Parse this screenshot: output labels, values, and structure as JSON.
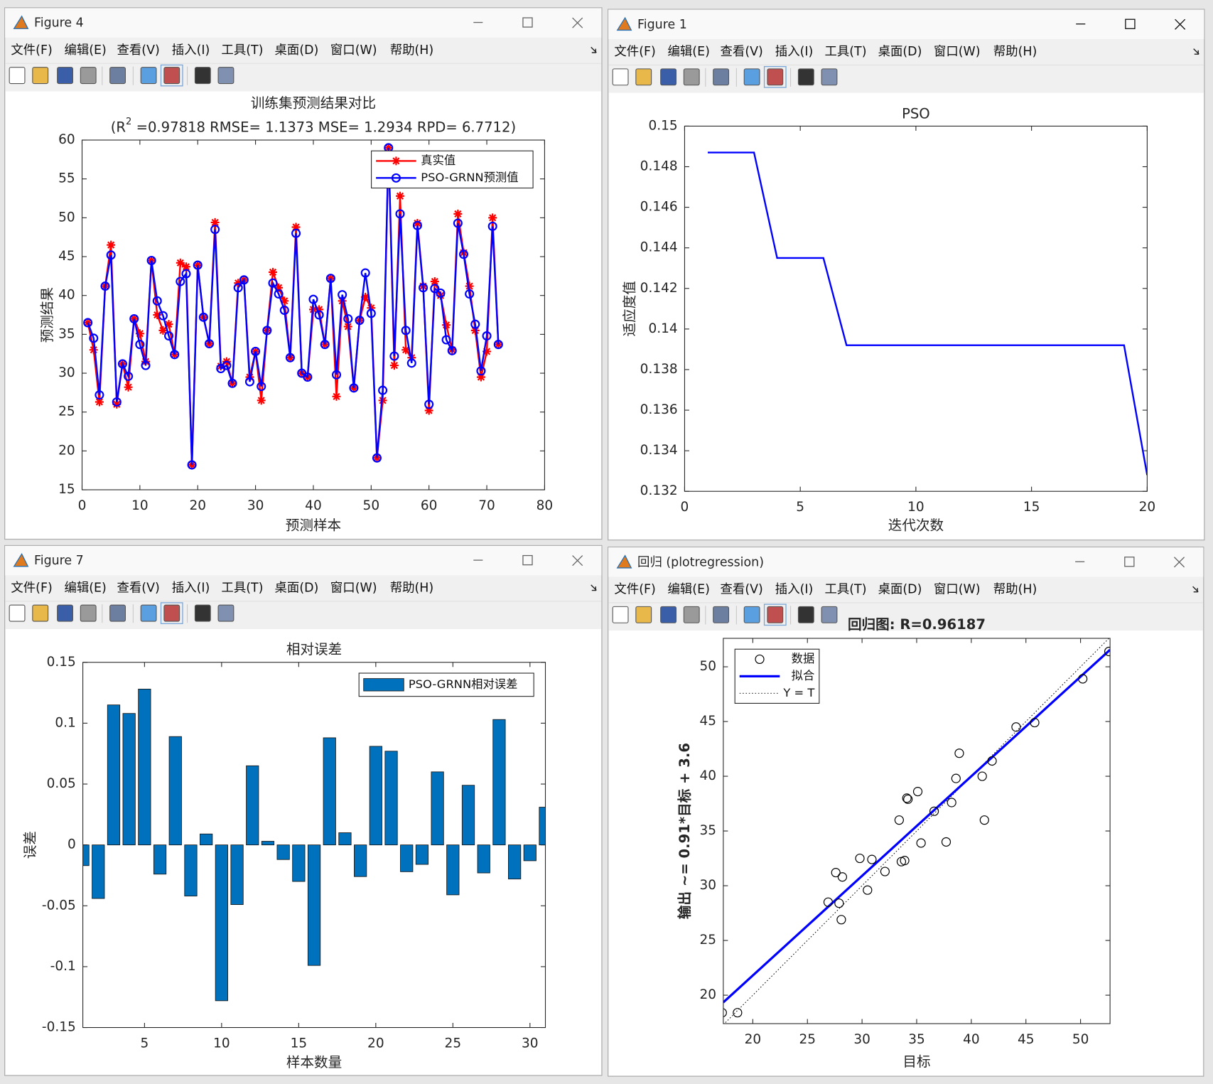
{
  "windows": [
    {
      "title": "Figure 4"
    },
    {
      "title": "Figure 1"
    },
    {
      "title": "Figure 7"
    },
    {
      "title": "回归 (plotregression)"
    }
  ],
  "menu": [
    "文件(F)",
    "编辑(E)",
    "查看(V)",
    "插入(I)",
    "工具(T)",
    "桌面(D)",
    "窗口(W)",
    "帮助(H)"
  ],
  "chart_data": [
    {
      "type": "line",
      "title": "训练集预测结果对比",
      "subtitle": [
        "(R",
        "2",
        " =0.97818 RMSE= 1.1373 MSE= 1.2934 RPD= 6.7712)"
      ],
      "xlabel": "预测样本",
      "ylabel": "预测结果",
      "x": [
        1,
        2,
        3,
        4,
        5,
        6,
        7,
        8,
        9,
        10,
        11,
        12,
        13,
        14,
        15,
        16,
        17,
        18,
        19,
        20,
        21,
        22,
        23,
        24,
        25,
        26,
        27,
        28,
        29,
        30,
        31,
        32,
        33,
        34,
        35,
        36,
        37,
        38,
        39,
        40,
        41,
        42,
        43,
        44,
        45,
        46,
        47,
        48,
        49,
        50,
        51,
        52,
        53,
        54,
        55,
        56,
        57,
        58,
        59,
        60,
        61,
        62,
        63,
        64,
        65,
        66,
        67,
        68,
        69,
        70,
        71,
        72
      ],
      "series": [
        {
          "name": "真实值",
          "color": "#ff0000",
          "marker": "*",
          "values": [
            36.5,
            33.0,
            26.3,
            41.2,
            46.5,
            26.0,
            31.2,
            28.2,
            37.0,
            35.1,
            31.5,
            44.5,
            37.5,
            35.5,
            36.3,
            32.4,
            44.2,
            43.7,
            18.2,
            43.9,
            37.2,
            33.8,
            49.4,
            30.9,
            31.5,
            28.7,
            41.6,
            42.0,
            29.5,
            32.8,
            26.5,
            35.5,
            43.0,
            41.0,
            39.3,
            32.0,
            48.8,
            30.0,
            29.5,
            38.2,
            38.2,
            33.7,
            42.2,
            27.0,
            39.3,
            36.0,
            28.1,
            36.8,
            39.8,
            38.4,
            19.1,
            26.5,
            59.0,
            31.0,
            52.8,
            33.0,
            32.0,
            49.3,
            41.2,
            25.2,
            41.8,
            40.0,
            36.2,
            33.0,
            50.5,
            45.5,
            41.2,
            35.5,
            29.5,
            32.8,
            50.0,
            33.7
          ]
        },
        {
          "name": "PSO-GRNN预测值",
          "color": "#0000ff",
          "marker": "o",
          "values": [
            36.5,
            34.5,
            27.2,
            41.2,
            45.2,
            26.3,
            31.2,
            29.6,
            37.0,
            33.7,
            31.0,
            44.5,
            39.3,
            37.4,
            34.8,
            32.4,
            41.8,
            42.8,
            18.2,
            43.9,
            37.2,
            33.8,
            48.5,
            30.6,
            31.0,
            28.7,
            41.0,
            42.0,
            28.9,
            32.8,
            28.3,
            35.5,
            41.6,
            40.2,
            38.1,
            32.0,
            48.0,
            30.0,
            29.5,
            39.5,
            37.5,
            33.7,
            42.2,
            29.8,
            40.1,
            37.0,
            28.1,
            36.8,
            42.9,
            37.7,
            19.1,
            27.8,
            59.0,
            32.2,
            50.5,
            35.5,
            31.3,
            49.0,
            41.0,
            26.0,
            40.9,
            40.3,
            34.3,
            32.9,
            49.3,
            45.3,
            40.2,
            36.3,
            30.3,
            34.8,
            48.9,
            33.7
          ]
        }
      ],
      "xlim": [
        0,
        80
      ],
      "xticks": [
        0,
        10,
        20,
        30,
        40,
        50,
        60,
        70,
        80
      ],
      "ylim": [
        15,
        60
      ],
      "yticks": [
        15,
        20,
        25,
        30,
        35,
        40,
        45,
        50,
        55,
        60
      ],
      "legend": "northeast",
      "grid": false
    },
    {
      "type": "line",
      "title": "PSO",
      "xlabel": "迭代次数",
      "ylabel": "适应度值",
      "x": [
        1,
        2,
        3,
        4,
        5,
        6,
        7,
        8,
        9,
        10,
        11,
        12,
        13,
        14,
        15,
        16,
        17,
        18,
        19,
        20
      ],
      "values": [
        0.1487,
        0.1487,
        0.1487,
        0.1435,
        0.1435,
        0.1435,
        0.1392,
        0.1392,
        0.1392,
        0.1392,
        0.1392,
        0.1392,
        0.1392,
        0.1392,
        0.1392,
        0.1392,
        0.1392,
        0.1392,
        0.1392,
        0.1328
      ],
      "color": "#0000ff",
      "xlim": [
        0,
        20
      ],
      "xticks": [
        0,
        5,
        10,
        15,
        20
      ],
      "ylim": [
        0.132,
        0.15
      ],
      "yticks": [
        0.132,
        0.134,
        0.136,
        0.138,
        0.14,
        0.142,
        0.144,
        0.146,
        0.148,
        0.15
      ],
      "grid": false
    },
    {
      "type": "bar",
      "title": "相对误差",
      "xlabel": "样本数量",
      "ylabel": "误差",
      "x": [
        1,
        2,
        3,
        4,
        5,
        6,
        7,
        8,
        9,
        10,
        11,
        12,
        13,
        14,
        15,
        16,
        17,
        18,
        19,
        20,
        21,
        22,
        23,
        24,
        25,
        26,
        27,
        28,
        29,
        30,
        31
      ],
      "series": [
        {
          "name": "PSO-GRNN相对误差",
          "color": "#0072bd",
          "values": [
            -0.017,
            -0.044,
            0.115,
            0.108,
            0.128,
            -0.024,
            0.089,
            -0.042,
            0.009,
            -0.128,
            -0.049,
            0.065,
            0.003,
            -0.012,
            -0.03,
            -0.099,
            0.088,
            0.01,
            -0.026,
            0.081,
            0.077,
            -0.022,
            -0.016,
            0.06,
            -0.041,
            0.049,
            -0.023,
            0.103,
            -0.028,
            -0.013,
            0.031
          ]
        }
      ],
      "xlim": [
        1,
        31
      ],
      "xticks": [
        5,
        10,
        15,
        20,
        25,
        30
      ],
      "ylim": [
        -0.15,
        0.15
      ],
      "yticks": [
        -0.15,
        -0.1,
        -0.05,
        0,
        0.05,
        0.1,
        0.15
      ],
      "legend": "northeast",
      "grid": false
    },
    {
      "type": "scatter",
      "title": "回归图: R=0.96187",
      "xlabel": "目标",
      "ylabel": "输出 ~= 0.91*目标 + 3.6",
      "series": [
        {
          "name": "数据",
          "color": "#000000",
          "x": [
            17.2,
            18.6,
            26.9,
            27.6,
            27.9,
            28.2,
            28.1,
            29.8,
            30.5,
            30.9,
            32.1,
            33.4,
            33.6,
            33.9,
            34.1,
            34.2,
            35.1,
            35.4,
            36.6,
            37.7,
            38.2,
            38.6,
            38.9,
            41.0,
            41.2,
            41.9,
            44.1,
            45.8,
            50.2,
            52.6
          ],
          "values": [
            18.4,
            18.4,
            28.5,
            31.2,
            28.4,
            30.8,
            26.9,
            32.5,
            29.6,
            32.4,
            31.3,
            36.0,
            32.2,
            32.3,
            38.0,
            37.9,
            38.6,
            33.9,
            36.8,
            34.0,
            37.6,
            39.8,
            42.1,
            40.0,
            36.0,
            41.4,
            44.5,
            44.9,
            48.9,
            51.4
          ]
        }
      ],
      "fit": {
        "name": "拟合",
        "color": "#0000ff",
        "slope": 0.91,
        "intercept": 3.6
      },
      "identity": {
        "name": "Y = T",
        "color": "#000000"
      },
      "xlim": [
        17.3,
        52.7
      ],
      "xticks": [
        20,
        25,
        30,
        35,
        40,
        45,
        50
      ],
      "ylim": [
        17.4,
        52.6
      ],
      "yticks": [
        20,
        25,
        30,
        35,
        40,
        45,
        50
      ],
      "legend": "northwest",
      "grid": false
    }
  ]
}
